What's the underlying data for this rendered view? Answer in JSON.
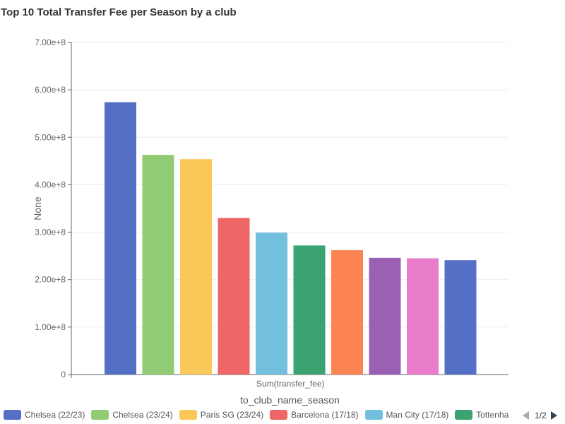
{
  "chart_data": {
    "type": "bar",
    "title": "Top 10 Total Transfer Fee per Season by a club",
    "xlabel": "to_club_name_season",
    "ylabel": "None",
    "x_tick_label": "Sum(transfer_fee)",
    "ylim": [
      0,
      700000000
    ],
    "y_ticks": [
      {
        "value": 0,
        "label": "0"
      },
      {
        "value": 100000000,
        "label": "1.00e+8"
      },
      {
        "value": 200000000,
        "label": "2.00e+8"
      },
      {
        "value": 300000000,
        "label": "3.00e+8"
      },
      {
        "value": 400000000,
        "label": "4.00e+8"
      },
      {
        "value": 500000000,
        "label": "5.00e+8"
      },
      {
        "value": 600000000,
        "label": "6.00e+8"
      },
      {
        "value": 700000000,
        "label": "7.00e+8"
      }
    ],
    "series": [
      {
        "name": "Chelsea (22/23)",
        "value": 574000000,
        "color": "#5470c6"
      },
      {
        "name": "Chelsea (23/24)",
        "value": 463000000,
        "color": "#91cc75"
      },
      {
        "name": "Paris SG (23/24)",
        "value": 454000000,
        "color": "#fac858"
      },
      {
        "name": "Barcelona (17/18)",
        "value": 330000000,
        "color": "#ee6666"
      },
      {
        "name": "Man City (17/18)",
        "value": 299000000,
        "color": "#73c0de"
      },
      {
        "name": "Tottenha",
        "value": 272000000,
        "color": "#3ba272"
      },
      {
        "name": "",
        "value": 262000000,
        "color": "#fc8452"
      },
      {
        "name": "",
        "value": 246000000,
        "color": "#9a60b4"
      },
      {
        "name": "",
        "value": 245000000,
        "color": "#ea7ccc"
      },
      {
        "name": "",
        "value": 241000000,
        "color": "#5470c6"
      }
    ],
    "legend_position": "bottom",
    "grid": true
  },
  "legend": {
    "page_label": "1/2",
    "prev_icon": "triangle-left",
    "next_icon": "triangle-right"
  }
}
